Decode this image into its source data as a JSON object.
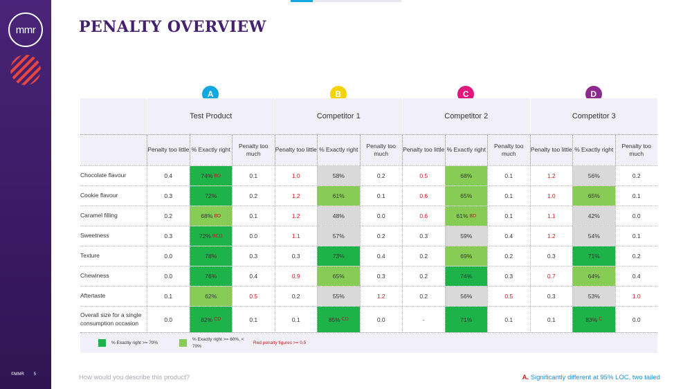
{
  "brand": {
    "logo_text": "mmr",
    "copyright": "©MMR",
    "page_number": "5"
  },
  "title": "PENALTY OVERVIEW",
  "badges": [
    {
      "letter": "A",
      "color": "#13a8e0"
    },
    {
      "letter": "B",
      "color": "#f4d400"
    },
    {
      "letter": "C",
      "color": "#e0177c"
    },
    {
      "letter": "D",
      "color": "#8e2a8f"
    }
  ],
  "products": [
    "Test Product",
    "Competitor 1",
    "Competitor 2",
    "Competitor 3"
  ],
  "col_headers": [
    "Penalty too little",
    "% Exactly right",
    "Penalty too much"
  ],
  "rows": [
    {
      "attribute": "Chocolate flavour",
      "cells": [
        {
          "v": "0.4"
        },
        {
          "v": "74%",
          "s": "BD",
          "bg": "dark"
        },
        {
          "v": "0.1"
        },
        {
          "v": "1.0",
          "red": true
        },
        {
          "v": "58%",
          "bg": "grey"
        },
        {
          "v": "0.2"
        },
        {
          "v": "0.5",
          "red": true
        },
        {
          "v": "68%",
          "bg": "light"
        },
        {
          "v": "0.1"
        },
        {
          "v": "1.2",
          "red": true
        },
        {
          "v": "56%",
          "bg": "grey"
        },
        {
          "v": "0.2"
        }
      ]
    },
    {
      "attribute": "Cookie flavour",
      "cells": [
        {
          "v": "0.3"
        },
        {
          "v": "72%",
          "bg": "dark"
        },
        {
          "v": "0.2"
        },
        {
          "v": "1.2",
          "red": true
        },
        {
          "v": "61%",
          "bg": "light"
        },
        {
          "v": "0.1"
        },
        {
          "v": "0.6",
          "red": true
        },
        {
          "v": "65%",
          "bg": "light"
        },
        {
          "v": "0.1"
        },
        {
          "v": "1.0",
          "red": true
        },
        {
          "v": "65%",
          "bg": "light"
        },
        {
          "v": "0.1"
        }
      ]
    },
    {
      "attribute": "Caramel filling",
      "cells": [
        {
          "v": "0.2"
        },
        {
          "v": "68%",
          "s": "BD",
          "bg": "light"
        },
        {
          "v": "0.1"
        },
        {
          "v": "1.2",
          "red": true
        },
        {
          "v": "48%",
          "bg": "grey"
        },
        {
          "v": "0.0"
        },
        {
          "v": "0.6",
          "red": true
        },
        {
          "v": "61%",
          "s": "BD",
          "bg": "light"
        },
        {
          "v": "0.1"
        },
        {
          "v": "1.1",
          "red": true
        },
        {
          "v": "42%",
          "bg": "grey"
        },
        {
          "v": "0.0"
        }
      ]
    },
    {
      "attribute": "Sweetness",
      "cells": [
        {
          "v": "0.3"
        },
        {
          "v": "72%",
          "s": "BCD",
          "bg": "dark"
        },
        {
          "v": "0.0"
        },
        {
          "v": "1.1",
          "red": true
        },
        {
          "v": "57%",
          "bg": "grey"
        },
        {
          "v": "0.2"
        },
        {
          "v": "0.3"
        },
        {
          "v": "59%",
          "bg": "grey"
        },
        {
          "v": "0.4"
        },
        {
          "v": "1.2",
          "red": true
        },
        {
          "v": "54%",
          "bg": "grey"
        },
        {
          "v": "0.1"
        }
      ]
    },
    {
      "attribute": "Texture",
      "cells": [
        {
          "v": "0.0"
        },
        {
          "v": "78%",
          "bg": "dark"
        },
        {
          "v": "0.3"
        },
        {
          "v": "0.3"
        },
        {
          "v": "73%",
          "bg": "dark"
        },
        {
          "v": "0.4"
        },
        {
          "v": "0.2"
        },
        {
          "v": "69%",
          "bg": "light"
        },
        {
          "v": "0.2"
        },
        {
          "v": "0.3"
        },
        {
          "v": "71%",
          "bg": "dark"
        },
        {
          "v": "0.2"
        }
      ]
    },
    {
      "attribute": "Chewiness",
      "cells": [
        {
          "v": "0.0"
        },
        {
          "v": "76%",
          "bg": "dark"
        },
        {
          "v": "0.4"
        },
        {
          "v": "0.9",
          "red": true
        },
        {
          "v": "65%",
          "bg": "light"
        },
        {
          "v": "0.3"
        },
        {
          "v": "0.2"
        },
        {
          "v": "74%",
          "bg": "dark"
        },
        {
          "v": "0.3"
        },
        {
          "v": "0.7",
          "red": true
        },
        {
          "v": "64%",
          "bg": "light"
        },
        {
          "v": "0.4"
        }
      ]
    },
    {
      "attribute": "Aftertaste",
      "cells": [
        {
          "v": "0.1"
        },
        {
          "v": "62%",
          "bg": "light"
        },
        {
          "v": "0.5",
          "red": true
        },
        {
          "v": "0.2"
        },
        {
          "v": "55%",
          "bg": "grey"
        },
        {
          "v": "1.2",
          "red": true
        },
        {
          "v": "0.2"
        },
        {
          "v": "56%",
          "bg": "grey"
        },
        {
          "v": "0.5",
          "red": true
        },
        {
          "v": "0.3"
        },
        {
          "v": "53%",
          "bg": "grey"
        },
        {
          "v": "1.0",
          "red": true
        }
      ]
    },
    {
      "attribute": "Overall size for a single consumption occasion",
      "tall": true,
      "cells": [
        {
          "v": "0.0"
        },
        {
          "v": "82%",
          "s": "CD",
          "bg": "dark"
        },
        {
          "v": "0.1"
        },
        {
          "v": "0.1"
        },
        {
          "v": "85%",
          "s": "CD",
          "bg": "dark"
        },
        {
          "v": "0.0"
        },
        {
          "v": "-"
        },
        {
          "v": "71%",
          "bg": "dark"
        },
        {
          "v": "0.1"
        },
        {
          "v": "0.1"
        },
        {
          "v": "83%",
          "s": "C",
          "bg": "dark"
        },
        {
          "v": "0.0"
        }
      ]
    }
  ],
  "legend": {
    "dark_label": "% Exactly right >= 70%",
    "light_label": "% Exactly right >= 60%, < 70%",
    "red_label": "Red penalty figures >= 0.5",
    "dark_color": "#1db348",
    "light_color": "#87cd55"
  },
  "footer": {
    "question": "How would you describe this product?",
    "note_letter": "A.",
    "note_text": "Significantly different at 95% LOC, two tailed"
  }
}
